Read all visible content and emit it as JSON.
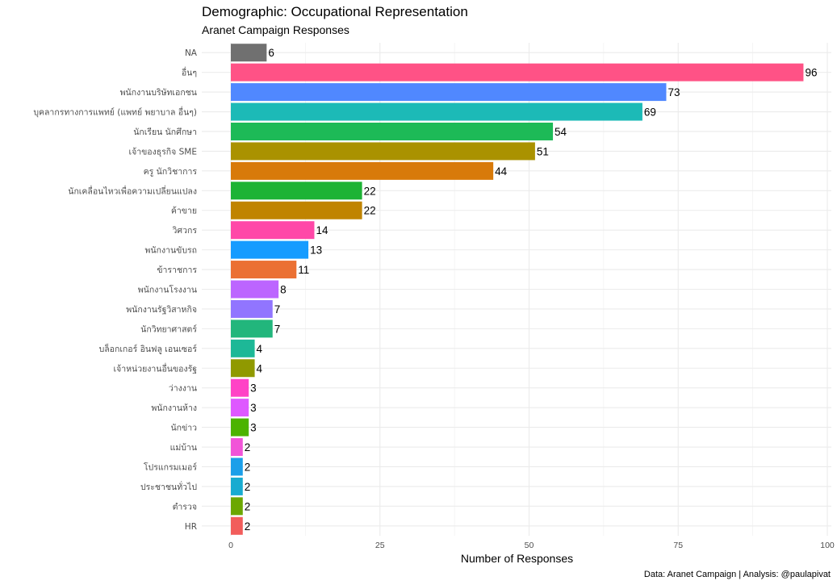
{
  "chart_data": {
    "type": "bar",
    "orientation": "horizontal",
    "title": "Demographic: Occupational Representation",
    "subtitle": "Aranet Campaign Responses",
    "xlabel": "Number of Responses",
    "ylabel": "",
    "caption": "Data: Aranet Campaign | Analysis: @paulapivat",
    "xlim": [
      0,
      100
    ],
    "xticks": [
      0,
      25,
      50,
      75,
      100
    ],
    "grid": true,
    "legend": "none",
    "categories": [
      "NA",
      "อื่นๆ",
      "พนักงานบริษัทเอกชน",
      "บุคลากรทางการแพทย์ (แพทย์ พยาบาล อื่นๆ)",
      "นักเรียน นักศึกษา",
      "เจ้าของธุรกิจ SME",
      "ครู  นักวิชาการ",
      "นักเคลื่อนไหวเพื่อความเปลี่ยนแปลง",
      "ค้าขาย",
      "วิศวกร",
      "พนักงานขับรถ",
      "ข้าราชการ",
      "พนักงานโรงงาน",
      "พนักงานรัฐวิสาหกิจ",
      "นักวิทยาศาสตร์",
      "บล็อกเกอร์ อินฟลู เอนเซอร์",
      "เจ้าหน่วยงานอื่นของรัฐ",
      "ว่างงาน",
      "พนักงานห้าง",
      "นักข่าว",
      "แม่บ้าน",
      "โปรแกรมเมอร์",
      "ประชาชนทั่วไป",
      "ตำรวจ",
      "HR"
    ],
    "values": [
      6,
      96,
      73,
      69,
      54,
      51,
      44,
      22,
      22,
      14,
      13,
      11,
      8,
      7,
      7,
      4,
      4,
      3,
      3,
      3,
      2,
      2,
      2,
      2,
      2
    ],
    "colors": [
      "#707070",
      "#FF5286",
      "#5088FF",
      "#1CBAB7",
      "#1DBA57",
      "#AA9200",
      "#D87A0A",
      "#1DB335",
      "#C08400",
      "#FF48A8",
      "#169CFF",
      "#EB7033",
      "#BC65FF",
      "#9175FF",
      "#22B67C",
      "#1DB897",
      "#909900",
      "#FF42C6",
      "#DE58FF",
      "#4CB300",
      "#F154D8",
      "#1B9FE9",
      "#18ABD0",
      "#6CA700",
      "#F25D5B"
    ]
  }
}
